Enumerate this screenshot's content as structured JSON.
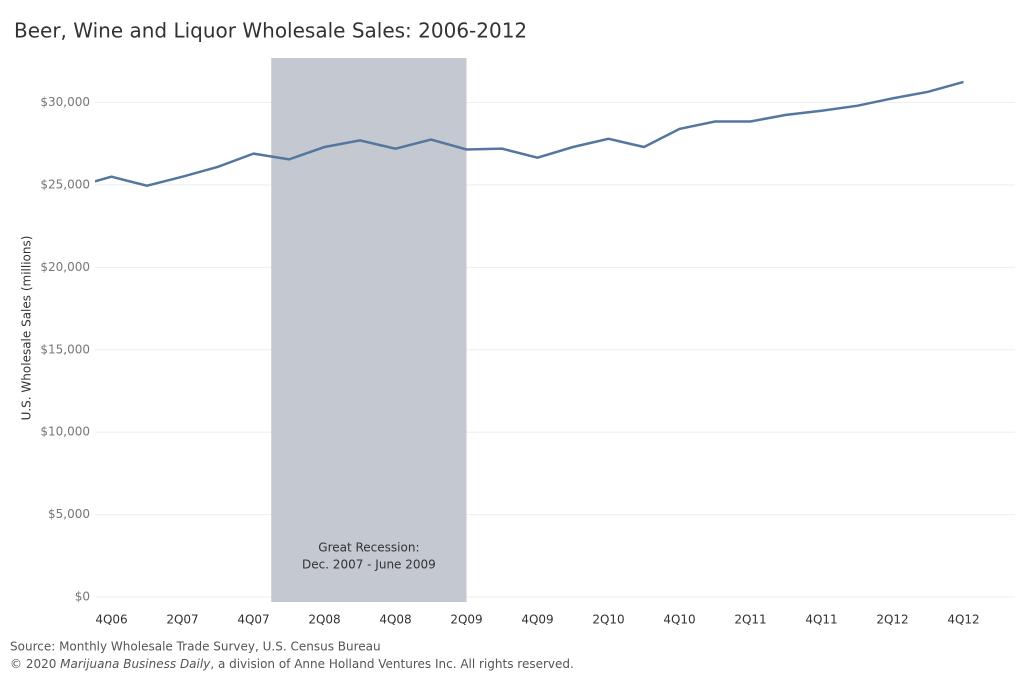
{
  "chart_data": {
    "type": "line",
    "title": "Beer, Wine and Liquor Wholesale Sales: 2006-2012",
    "y_axis_label": "U.S. Wholesale Sales (millions)",
    "categories": [
      null,
      "4Q06",
      null,
      "2Q07",
      null,
      "4Q07",
      null,
      "2Q08",
      null,
      "4Q08",
      null,
      "2Q09",
      null,
      "4Q09",
      null,
      "2Q10",
      null,
      "4Q10",
      null,
      "2Q11",
      null,
      "4Q11",
      null,
      "2Q12",
      null,
      "4Q12"
    ],
    "series": [
      {
        "name": "Wholesale Sales",
        "color": "#55779f",
        "values": [
          24900,
          25500,
          24950,
          25500,
          26100,
          26900,
          26550,
          27300,
          27700,
          27200,
          27750,
          27150,
          27200,
          26650,
          27300,
          27800,
          27300,
          28400,
          28850,
          28850,
          29250,
          29500,
          29800,
          30250,
          30650,
          31250
        ]
      }
    ],
    "ylim": [
      -300,
      32700
    ],
    "yticks": [
      {
        "value": 0,
        "label": "$0"
      },
      {
        "value": 5000,
        "label": "$5,000"
      },
      {
        "value": 10000,
        "label": "$10,000"
      },
      {
        "value": 15000,
        "label": "$15,000"
      },
      {
        "value": 20000,
        "label": "$20,000"
      },
      {
        "value": 25000,
        "label": "$25,000"
      },
      {
        "value": 30000,
        "label": "$30,000"
      }
    ],
    "grid": true,
    "shaded_region": {
      "x_start": 5.5,
      "x_end": 11,
      "color": "#c4c8d0",
      "label_lines": [
        "Great Recession:",
        "Dec. 2007 - June 2009"
      ]
    },
    "source": "Source: Monthly Wholesale Trade Survey, U.S. Census Bureau",
    "copyright": [
      "© 2020 ",
      "Marijuana Business Daily",
      ", a division of Anne Holland Ventures Inc. All rights reserved."
    ]
  }
}
